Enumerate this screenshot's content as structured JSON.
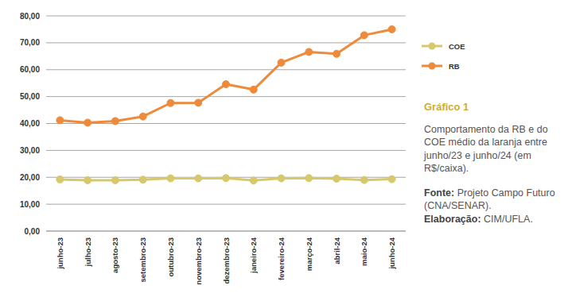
{
  "chart_data": {
    "type": "line",
    "title": "Gráfico 1",
    "subtitle": "Comportamento da RB e do COE médio da laranja entre junho/23 e junho/24 (em R$/caixa).",
    "annotations": [
      {
        "label": "Fonte:",
        "text": "Projeto Campo Futuro (CNA/SENAR)."
      },
      {
        "label": "Elaboração:",
        "text": "CIM/UFLA."
      }
    ],
    "categories": [
      "junho-23",
      "julho-23",
      "agosto-23",
      "setembro-23",
      "outubro-23",
      "novembro-23",
      "dezembro-23",
      "janeiro-24",
      "fevereiro-24",
      "março-24",
      "abril-24",
      "maio-24",
      "junho-24"
    ],
    "series": [
      {
        "name": "COE",
        "color": "#d6c86b",
        "marker": "circle",
        "values": [
          19.2,
          18.9,
          18.9,
          19.1,
          19.6,
          19.6,
          19.7,
          18.8,
          19.6,
          19.7,
          19.5,
          19.0,
          19.3
        ]
      },
      {
        "name": "RB",
        "color": "#ef8a3a",
        "marker": "circle",
        "values": [
          41.2,
          40.3,
          40.9,
          42.6,
          47.6,
          47.7,
          54.6,
          52.6,
          62.6,
          66.6,
          65.9,
          72.8,
          75.0
        ]
      }
    ],
    "ylim": [
      0,
      80
    ],
    "yticks": [
      {
        "value": 0,
        "label": "0,00"
      },
      {
        "value": 10,
        "label": "10,00"
      },
      {
        "value": 20,
        "label": "20,00"
      },
      {
        "value": 30,
        "label": "30,00"
      },
      {
        "value": 40,
        "label": "40,00"
      },
      {
        "value": 50,
        "label": "50,00"
      },
      {
        "value": 60,
        "label": "60,00"
      },
      {
        "value": 70,
        "label": "70,00"
      },
      {
        "value": 80,
        "label": "80,00"
      }
    ],
    "grid": true,
    "legend": "right"
  }
}
